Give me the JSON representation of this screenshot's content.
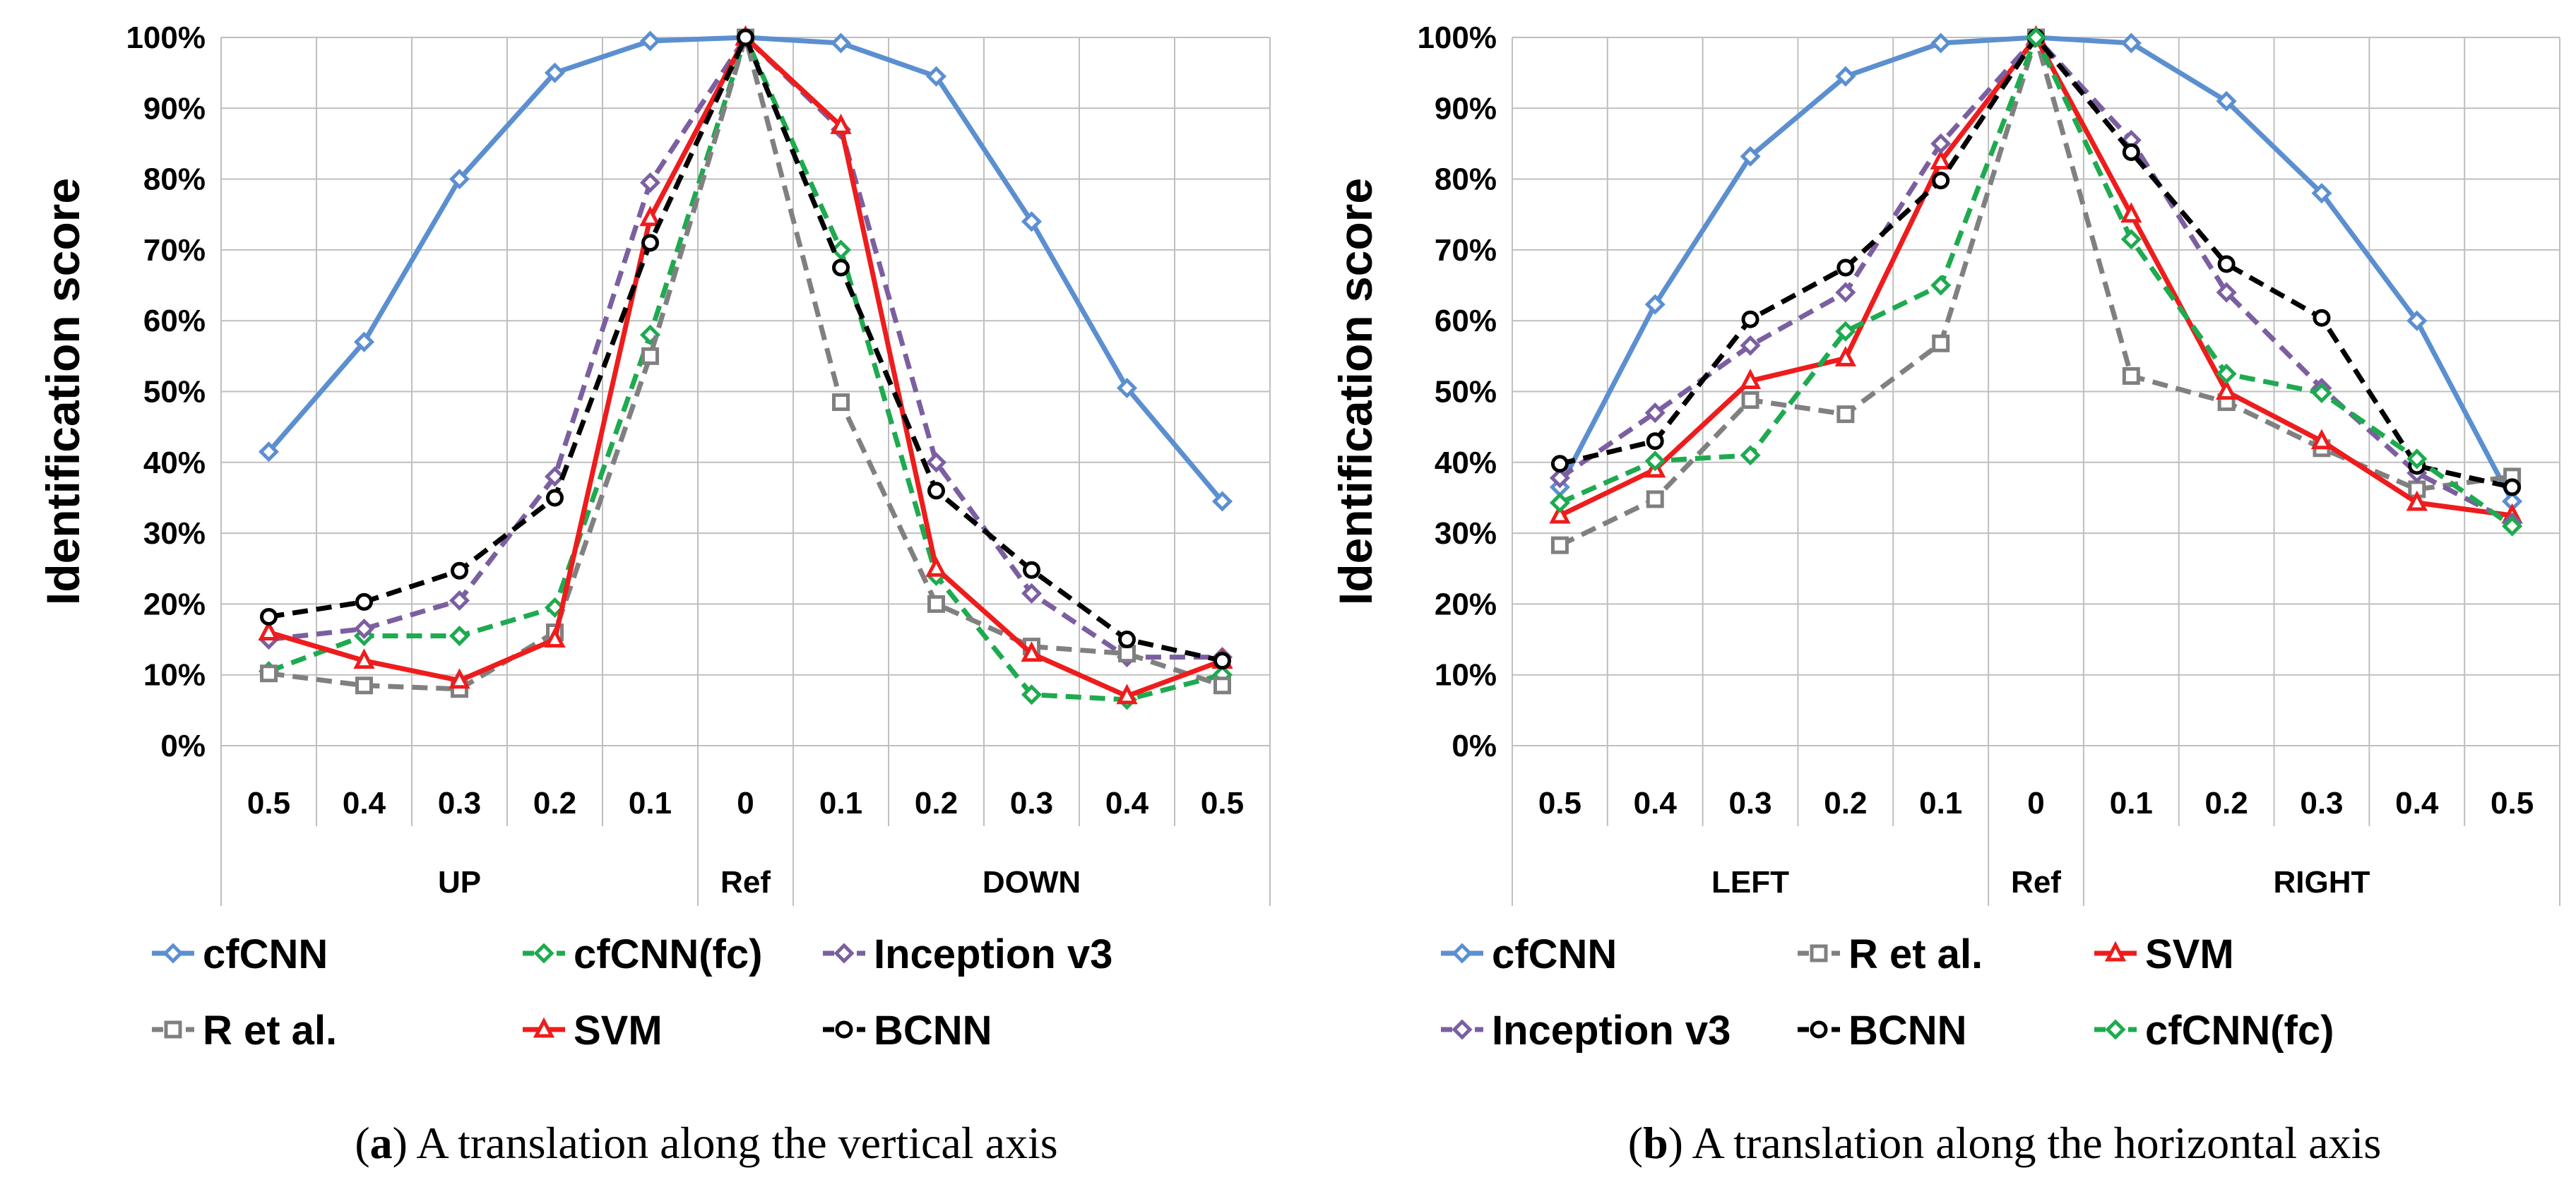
{
  "chart_data": [
    {
      "type": "line",
      "caption_letter": "a",
      "caption_text": "A translation along the vertical axis",
      "ylabel": "Identification score",
      "ylim": [
        0,
        100
      ],
      "yticks": [
        "0%",
        "10%",
        "20%",
        "30%",
        "40%",
        "50%",
        "60%",
        "70%",
        "80%",
        "90%",
        "100%"
      ],
      "categories": [
        "0.5",
        "0.4",
        "0.3",
        "0.2",
        "0.1",
        "0",
        "0.1",
        "0.2",
        "0.3",
        "0.4",
        "0.5"
      ],
      "groups": [
        {
          "label": "UP",
          "span": [
            0,
            4
          ]
        },
        {
          "label": "Ref",
          "span": [
            5,
            5
          ]
        },
        {
          "label": "DOWN",
          "span": [
            6,
            10
          ]
        }
      ],
      "series": [
        {
          "name": "cfCNN",
          "color": "#5B8FD0",
          "dash": "solid",
          "marker": "diamond",
          "values": [
            41.5,
            57,
            80,
            95,
            99.5,
            100,
            99.2,
            94.5,
            74,
            50.5,
            34.5
          ]
        },
        {
          "name": "cfCNN(fc)",
          "color": "#1EAA4F",
          "dash": "dashed",
          "marker": "diamond",
          "values": [
            10.5,
            15.5,
            15.5,
            19.5,
            58,
            100,
            70,
            24,
            7.2,
            6.5,
            10
          ]
        },
        {
          "name": "Inception v3",
          "color": "#7B5FA0",
          "dash": "dashed",
          "marker": "diamond",
          "values": [
            15,
            16.5,
            20.5,
            38,
            79.5,
            100,
            87,
            40,
            21.5,
            12.5,
            12.5
          ]
        },
        {
          "name": "R et al.",
          "color": "#808080",
          "dash": "dashed",
          "marker": "square",
          "values": [
            10.2,
            8.5,
            8,
            16,
            55,
            100,
            48.5,
            20,
            14,
            13,
            8.5
          ]
        },
        {
          "name": "SVM",
          "color": "#EE1C1C",
          "dash": "solid",
          "marker": "triangle",
          "values": [
            16,
            12,
            9.2,
            15,
            74.5,
            100,
            87.5,
            25,
            13,
            7,
            12
          ]
        },
        {
          "name": "BCNN",
          "color": "#000000",
          "dash": "dashed",
          "marker": "circle",
          "values": [
            18.2,
            20.3,
            24.7,
            35,
            71,
            100,
            67.5,
            36,
            24.8,
            15,
            12
          ]
        }
      ],
      "legend": [
        [
          "cfCNN",
          "cfCNN(fc)",
          "Inception v3"
        ],
        [
          "R et al.",
          "SVM",
          "BCNN"
        ]
      ]
    },
    {
      "type": "line",
      "caption_letter": "b",
      "caption_text": "A translation along the horizontal axis",
      "ylabel": "Identification score",
      "ylim": [
        0,
        100
      ],
      "yticks": [
        "0%",
        "10%",
        "20%",
        "30%",
        "40%",
        "50%",
        "60%",
        "70%",
        "80%",
        "90%",
        "100%"
      ],
      "categories": [
        "0.5",
        "0.4",
        "0.3",
        "0.2",
        "0.1",
        "0",
        "0.1",
        "0.2",
        "0.3",
        "0.4",
        "0.5"
      ],
      "groups": [
        {
          "label": "LEFT",
          "span": [
            0,
            4
          ]
        },
        {
          "label": "Ref",
          "span": [
            5,
            5
          ]
        },
        {
          "label": "RIGHT",
          "span": [
            6,
            10
          ]
        }
      ],
      "series": [
        {
          "name": "cfCNN",
          "color": "#5B8FD0",
          "dash": "solid",
          "marker": "diamond",
          "values": [
            36.5,
            62.3,
            83.2,
            94.5,
            99.2,
            100,
            99.2,
            91,
            78,
            60,
            34.5
          ]
        },
        {
          "name": "R et al.",
          "color": "#808080",
          "dash": "dashed",
          "marker": "square",
          "values": [
            28.3,
            34.8,
            48.8,
            46.8,
            56.8,
            100,
            52.2,
            48.5,
            42,
            36.2,
            38
          ]
        },
        {
          "name": "SVM",
          "color": "#EE1C1C",
          "dash": "solid",
          "marker": "triangle",
          "values": [
            32.5,
            39,
            51.5,
            54.7,
            82.5,
            100,
            75,
            50,
            43,
            34.3,
            32.5
          ]
        },
        {
          "name": "Inception v3",
          "color": "#7B5FA0",
          "dash": "dashed",
          "marker": "diamond",
          "values": [
            37.8,
            47,
            56.5,
            64,
            85,
            100,
            85.5,
            64,
            50.5,
            38.5,
            31.5
          ]
        },
        {
          "name": "BCNN",
          "color": "#000000",
          "dash": "dashed",
          "marker": "circle",
          "values": [
            39.8,
            43,
            60.2,
            67.5,
            79.8,
            100,
            83.8,
            68,
            60.4,
            39.5,
            36.5
          ]
        },
        {
          "name": "cfCNN(fc)",
          "color": "#1EAA4F",
          "dash": "dashed",
          "marker": "diamond",
          "values": [
            34.3,
            40.2,
            41,
            58.5,
            65,
            100,
            71.5,
            52.5,
            49.8,
            40.5,
            31
          ]
        }
      ],
      "legend": [
        [
          "cfCNN",
          "R et al.",
          "SVM"
        ],
        [
          "Inception v3",
          "BCNN",
          "cfCNN(fc)"
        ]
      ]
    }
  ]
}
